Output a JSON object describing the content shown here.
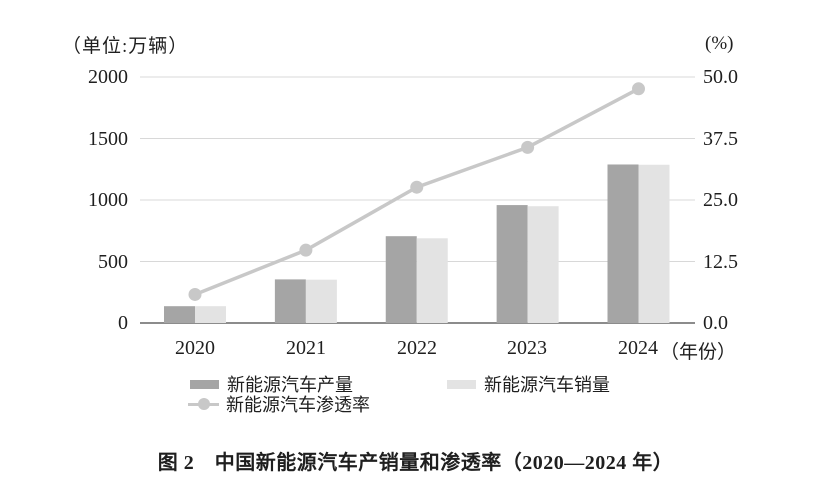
{
  "figure": {
    "caption": "图 2　中国新能源汽车产销量和渗透率（2020—2024 年）"
  },
  "chart_data": {
    "type": "combo",
    "title": "",
    "categories": [
      "2020",
      "2021",
      "2022",
      "2023",
      "2024"
    ],
    "series": [
      {
        "name": "新能源汽车产量",
        "type": "bar",
        "axis": "left",
        "color": "#a5a5a5",
        "values": [
          136.6,
          354.5,
          705.8,
          958.7,
          1288.8
        ]
      },
      {
        "name": "新能源汽车销量",
        "type": "bar",
        "axis": "left",
        "color": "#e3e3e3",
        "values": [
          136.7,
          352.1,
          688.7,
          949.5,
          1286.6
        ]
      },
      {
        "name": "新能源汽车渗透率",
        "type": "line",
        "axis": "right",
        "color": "#c8c8c8",
        "values": [
          5.8,
          14.8,
          27.6,
          35.7,
          47.6
        ]
      }
    ],
    "left_axis": {
      "unit": "（单位:万辆）",
      "min": 0,
      "max": 2000,
      "ticks": [
        "2000",
        "1500",
        "1000",
        "500",
        "0"
      ]
    },
    "right_axis": {
      "unit": "(%)",
      "min": 0,
      "max": 50,
      "ticks": [
        "50.0",
        "37.5",
        "25.0",
        "12.5",
        "0.0"
      ]
    },
    "x_axis": {
      "suffix": "（年份）"
    },
    "grid": "horizontal",
    "legend_position": "bottom",
    "colors": {
      "gridline": "#d8d8d8",
      "axis_line": "#8c8c8c",
      "text": "#1f1f1f"
    }
  }
}
